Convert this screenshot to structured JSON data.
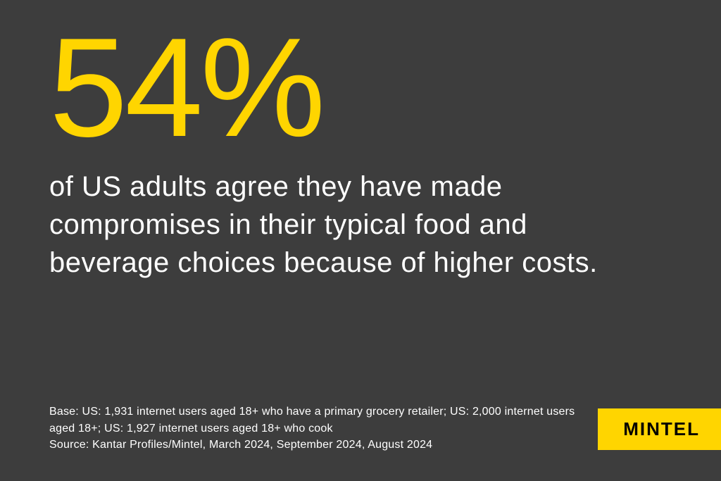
{
  "type": "infographic",
  "background_color": "#3d3d3d",
  "accent_color": "#ffd500",
  "text_color": "#ffffff",
  "brand_text_color": "#000000",
  "stat": {
    "value": "54%",
    "fontsize": 200,
    "color": "#ffd500",
    "font_weight": 500
  },
  "description": {
    "text": "of US adults agree they have made compromises in their typical food and beverage choices because of higher costs.",
    "fontsize": 40,
    "color": "#ffffff",
    "font_weight": 300
  },
  "base_note": {
    "line1": "Base: US: 1,931 internet users aged 18+ who have a primary grocery retailer; US: 2,000 internet users aged 18+; US: 1,927 internet users aged 18+ who cook",
    "line2": "Source: Kantar Profiles/Mintel, March 2024, September 2024, August 2024",
    "fontsize": 16,
    "color": "#ffffff"
  },
  "brand": {
    "label": "MINTEL",
    "background_color": "#ffd500",
    "text_color": "#000000",
    "fontsize": 26
  }
}
